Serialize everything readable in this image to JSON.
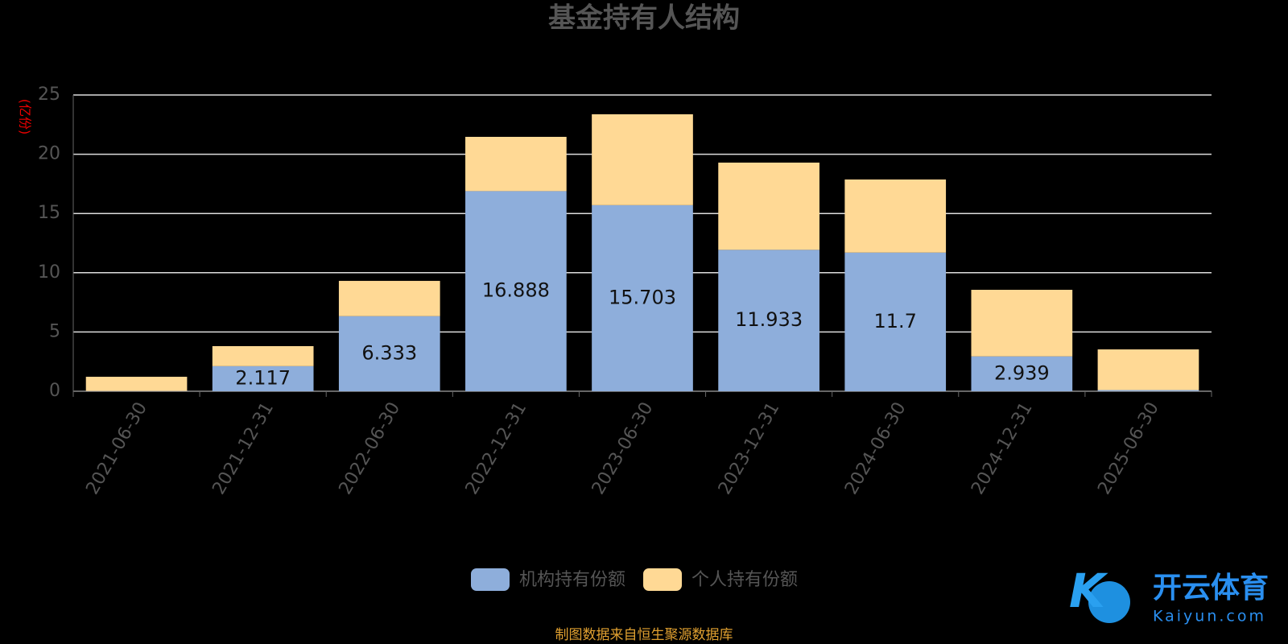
{
  "chart_data": {
    "type": "stacked-bar",
    "title": "基金持有人结构",
    "y_label": "(亿份)",
    "categories": [
      "2021-06-30",
      "2021-12-31",
      "2022-06-30",
      "2022-12-31",
      "2023-06-30",
      "2023-12-31",
      "2024-06-30",
      "2024-12-31",
      "2025-06-30"
    ],
    "series": [
      {
        "name": "机构持有份额",
        "color": "#8eaedb",
        "values": [
          0.02,
          2.117,
          6.333,
          16.888,
          15.703,
          11.933,
          11.7,
          2.939,
          0.1
        ]
      },
      {
        "name": "个人持有份额",
        "color": "#ffd995",
        "values": [
          1.2,
          1.69,
          2.98,
          4.58,
          7.67,
          7.36,
          6.17,
          5.62,
          3.43
        ]
      }
    ],
    "labeled_series": 0,
    "ylim": [
      0,
      25
    ],
    "yticks": [
      0,
      5,
      10,
      15,
      20,
      25
    ],
    "grid": true,
    "legend": "bottom",
    "source": "制图数据来自恒生聚源数据库",
    "watermark": {
      "brand": "开云体育",
      "site": "Kaiyun.com"
    }
  }
}
